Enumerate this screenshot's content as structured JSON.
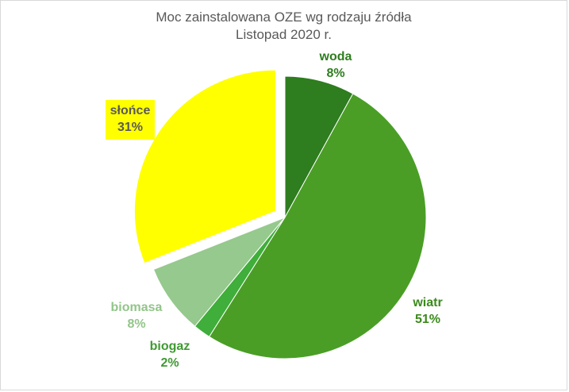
{
  "chart_data": {
    "type": "pie",
    "title_line1": "Moc zainstalowana OZE wg rodzaju źródła",
    "title_line2": "Listopad 2020 r.",
    "legend": "none",
    "slices": [
      {
        "name": "woda",
        "value": 8,
        "pct_label": "8%",
        "color": "#2e7d1f",
        "label_color": "#2e7d1f"
      },
      {
        "name": "wiatr",
        "value": 51,
        "pct_label": "51%",
        "color": "#4a9e26",
        "label_color": "#3b8a1c"
      },
      {
        "name": "biogaz",
        "value": 2,
        "pct_label": "2%",
        "color": "#3fae3a",
        "label_color": "#3f9a32"
      },
      {
        "name": "biomasa",
        "value": 8,
        "pct_label": "8%",
        "color": "#96c98d",
        "label_color": "#93c58a"
      },
      {
        "name": "słońce",
        "value": 31,
        "pct_label": "31%",
        "color": "#ffff00",
        "label_color": "#595959",
        "label_bg": "#ffff00",
        "exploded": true
      }
    ]
  }
}
